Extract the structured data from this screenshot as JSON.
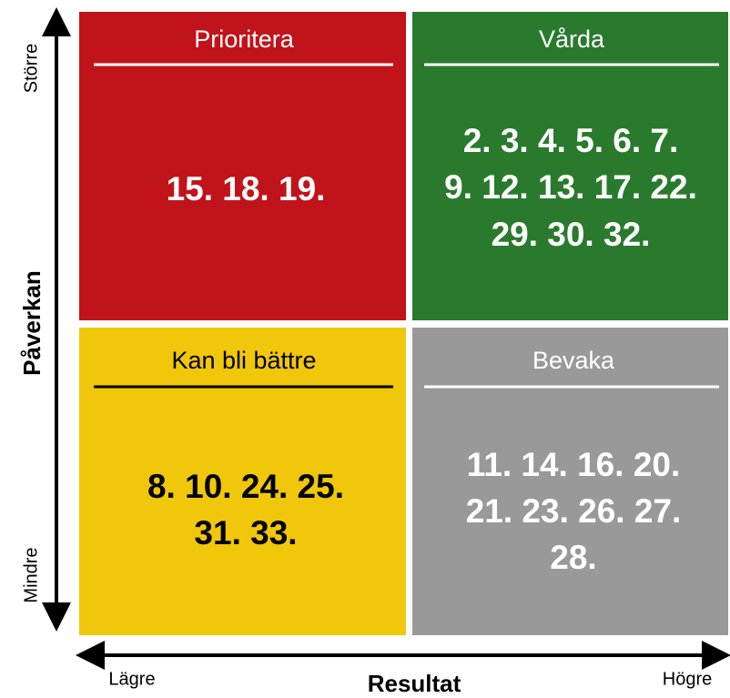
{
  "y_axis": {
    "label": "Påverkan",
    "top": "Större",
    "bottom": "Mindre"
  },
  "x_axis": {
    "label": "Resultat",
    "left": "Lägre",
    "right": "Högre"
  },
  "quadrants": [
    {
      "title": "Prioritera",
      "lines": [
        "15. 18. 19."
      ]
    },
    {
      "title": "Vårda",
      "lines": [
        "2. 3. 4. 5. 6. 7.",
        "9. 12. 13. 17. 22.",
        "29. 30. 32."
      ]
    },
    {
      "title": "Kan bli bättre",
      "lines": [
        "8. 10. 24. 25.",
        "31. 33."
      ]
    },
    {
      "title": "Bevaka",
      "lines": [
        "11. 14. 16. 20.",
        "21. 23. 26. 27.",
        "28."
      ]
    }
  ]
}
